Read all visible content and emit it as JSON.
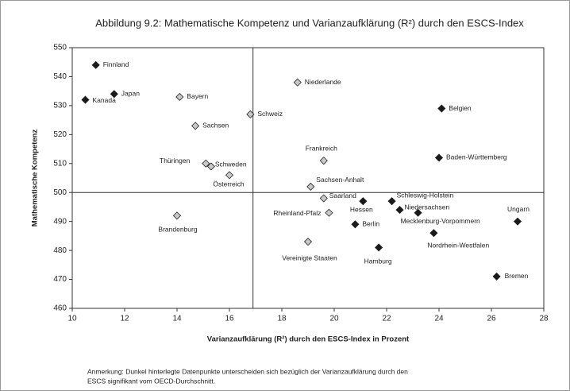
{
  "chart_data": {
    "type": "scatter",
    "title": "Abbildung 9.2: Mathematische Kompetenz und Varianzaufklärung (R²) durch den ESCS-Index",
    "xlabel": "Varianzaufklärung (R²) durch den ESCS-Index in Prozent",
    "ylabel": "Mathematische Kompetenz",
    "xlim": [
      10,
      28
    ],
    "xticks": [
      10,
      12,
      14,
      16,
      18,
      20,
      22,
      24,
      26,
      28
    ],
    "ylim": [
      460,
      550
    ],
    "yticks": [
      460,
      470,
      480,
      490,
      500,
      510,
      520,
      530,
      540,
      550
    ],
    "reference_x": 16.9,
    "reference_y": 500,
    "significant_color": "#1a1a1a",
    "other_color": "#c8c8c8",
    "points": [
      {
        "label": "Finnland",
        "x": 10.9,
        "y": 544,
        "significant": true
      },
      {
        "label": "Japan",
        "x": 11.6,
        "y": 534,
        "significant": true
      },
      {
        "label": "Kanada",
        "x": 10.5,
        "y": 532,
        "significant": true
      },
      {
        "label": "Bayern",
        "x": 14.1,
        "y": 533,
        "significant": false
      },
      {
        "label": "Sachsen",
        "x": 14.7,
        "y": 523,
        "significant": false
      },
      {
        "label": "Schweiz",
        "x": 16.8,
        "y": 527,
        "significant": false
      },
      {
        "label": "Niederlande",
        "x": 18.6,
        "y": 538,
        "significant": false
      },
      {
        "label": "Belgien",
        "x": 24.1,
        "y": 529,
        "significant": true
      },
      {
        "label": "Frankreich",
        "x": 19.6,
        "y": 511,
        "significant": false
      },
      {
        "label": "Baden-Württemberg",
        "x": 24.0,
        "y": 512,
        "significant": true
      },
      {
        "label": "Thüringen",
        "x": 15.1,
        "y": 510,
        "significant": false
      },
      {
        "label": "Schweden",
        "x": 15.3,
        "y": 509,
        "significant": false
      },
      {
        "label": "Österreich",
        "x": 16.0,
        "y": 506,
        "significant": false
      },
      {
        "label": "Sachsen-Anhalt",
        "x": 19.1,
        "y": 502,
        "significant": false
      },
      {
        "label": "Saarland",
        "x": 19.6,
        "y": 498,
        "significant": false
      },
      {
        "label": "Hessen",
        "x": 21.1,
        "y": 497,
        "significant": true
      },
      {
        "label": "Schleswig-Holstein",
        "x": 22.2,
        "y": 497,
        "significant": true
      },
      {
        "label": "Niedersachsen",
        "x": 22.5,
        "y": 494,
        "significant": true
      },
      {
        "label": "Mecklenburg-Vorpommern",
        "x": 23.2,
        "y": 493,
        "significant": true
      },
      {
        "label": "Rheinland-Pfalz",
        "x": 19.8,
        "y": 493,
        "significant": false
      },
      {
        "label": "Brandenburg",
        "x": 14.0,
        "y": 492,
        "significant": false
      },
      {
        "label": "Ungarn",
        "x": 27.0,
        "y": 490,
        "significant": true
      },
      {
        "label": "Berlin",
        "x": 20.8,
        "y": 489,
        "significant": true
      },
      {
        "label": "Nordrhein-Westfalen",
        "x": 23.8,
        "y": 486,
        "significant": true
      },
      {
        "label": "Vereinigte Staaten",
        "x": 19.0,
        "y": 483,
        "significant": false
      },
      {
        "label": "Hamburg",
        "x": 21.7,
        "y": 481,
        "significant": true
      },
      {
        "label": "Bremen",
        "x": 26.2,
        "y": 471,
        "significant": true
      }
    ],
    "notes": [
      "Anmerkung: Dunkel hinterlegte Datenpunkte unterscheiden sich bezüglich der Varianzaufklärung durch den",
      "ESCS signifikant vom OECD-Durchschnitt."
    ]
  }
}
